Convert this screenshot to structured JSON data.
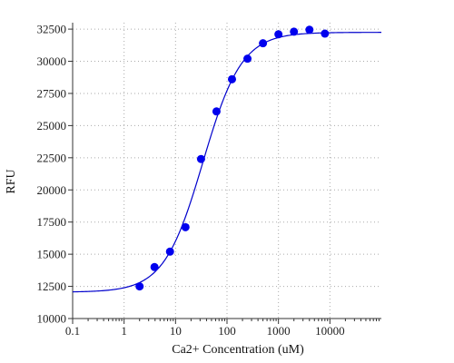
{
  "chart_data": {
    "type": "scatter",
    "title": "",
    "xlabel": "Ca2+ Concentration (uM)",
    "ylabel": "RFU",
    "x_scale": "log",
    "xlim": [
      0.1,
      100000
    ],
    "ylim": [
      10000,
      33000
    ],
    "x_ticks": [
      0.1,
      1,
      10,
      100,
      1000,
      10000
    ],
    "x_tick_labels": [
      "0.1",
      "1",
      "10",
      "100",
      "1000",
      "10000"
    ],
    "y_ticks": [
      10000,
      12500,
      15000,
      17500,
      20000,
      22500,
      25000,
      27500,
      30000,
      32500
    ],
    "y_tick_labels": [
      "10000",
      "12500",
      "15000",
      "17500",
      "20000",
      "22500",
      "25000",
      "27500",
      "30000",
      "32500"
    ],
    "grid": true,
    "series": [
      {
        "type": "scatter",
        "color": "#0000ee",
        "x": [
          2,
          3.9,
          7.8,
          15.6,
          31.3,
          62.5,
          125,
          250,
          500,
          1000,
          2000,
          4000,
          8000
        ],
        "y": [
          12500,
          14000,
          15200,
          17100,
          22400,
          26100,
          28600,
          30200,
          31400,
          32100,
          32300,
          32450,
          32150
        ]
      },
      {
        "type": "line",
        "color": "#0000cc",
        "fit": {
          "model": "sigmoid",
          "bottom": 12050,
          "top": 32250,
          "ec50": 34,
          "hill": 1.15
        }
      }
    ]
  }
}
